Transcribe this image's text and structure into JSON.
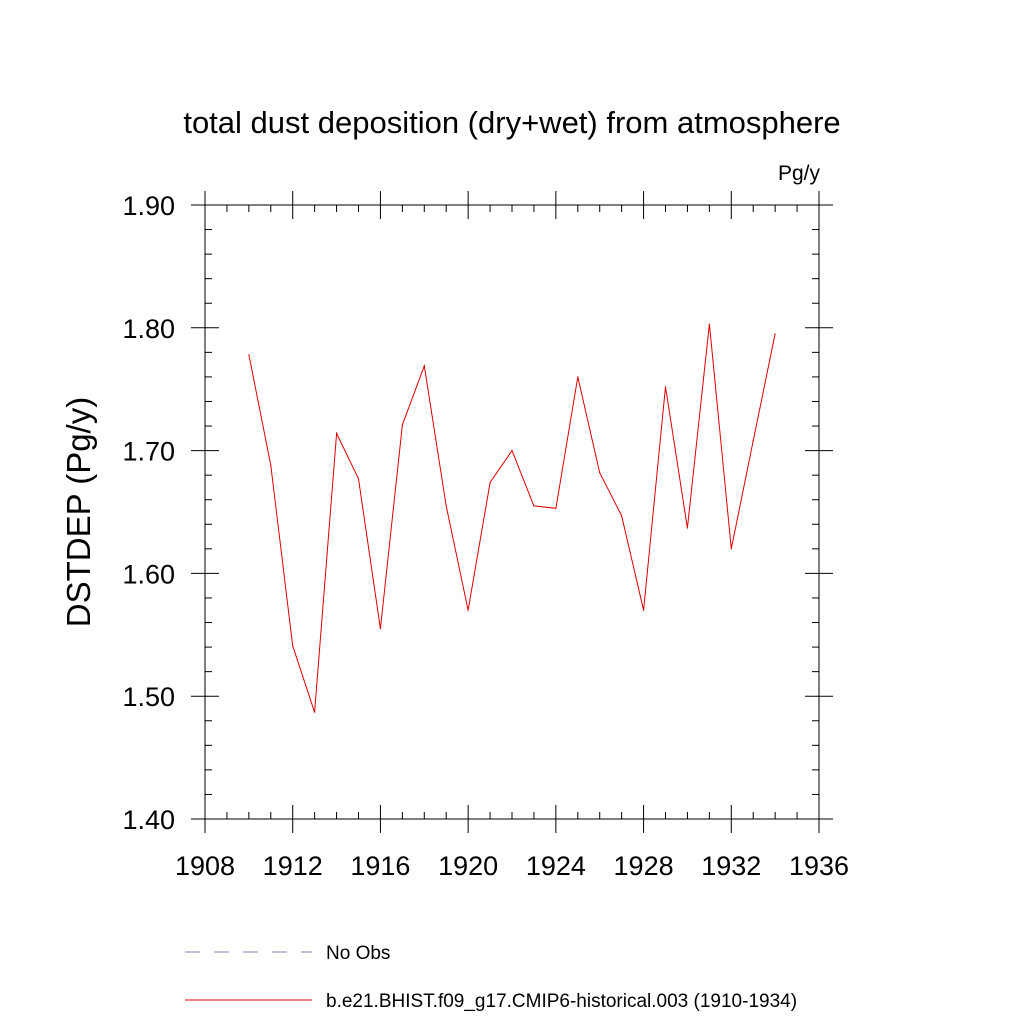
{
  "chart_data": {
    "type": "line",
    "title": "total dust deposition (dry+wet) from atmosphere",
    "units_label": "Pg/y",
    "ylabel": "DSTDEP  (Pg/y)",
    "xlabel": "",
    "xlim": [
      1908,
      1936
    ],
    "ylim": [
      1.4,
      1.9
    ],
    "x_ticks": [
      1908,
      1912,
      1916,
      1920,
      1924,
      1928,
      1932,
      1936
    ],
    "x_tick_labels": [
      "1908",
      "1912",
      "1916",
      "1920",
      "1924",
      "1928",
      "1932",
      "1936"
    ],
    "y_ticks": [
      1.4,
      1.5,
      1.6,
      1.7,
      1.8,
      1.9
    ],
    "y_tick_labels": [
      "1.40",
      "1.50",
      "1.60",
      "1.70",
      "1.80",
      "1.90"
    ],
    "grid": false,
    "legend_position": "bottom",
    "series": [
      {
        "name": "No Obs",
        "color": "#8080c0",
        "dashed": true,
        "x": [],
        "values": []
      },
      {
        "name": "b.e21.BHIST.f09_g17.CMIP6-historical.003 (1910-1934)",
        "color": "#e00000",
        "dashed": false,
        "x": [
          1910,
          1911,
          1912,
          1913,
          1914,
          1915,
          1916,
          1917,
          1918,
          1919,
          1920,
          1921,
          1922,
          1923,
          1924,
          1925,
          1926,
          1927,
          1928,
          1929,
          1930,
          1931,
          1932,
          1933,
          1934
        ],
        "values": [
          1.778,
          1.688,
          1.541,
          1.487,
          1.714,
          1.677,
          1.555,
          1.721,
          1.769,
          1.655,
          1.57,
          1.674,
          1.7,
          1.655,
          1.653,
          1.76,
          1.682,
          1.647,
          1.57,
          1.752,
          1.637,
          1.803,
          1.62,
          1.708,
          1.795
        ]
      }
    ]
  }
}
